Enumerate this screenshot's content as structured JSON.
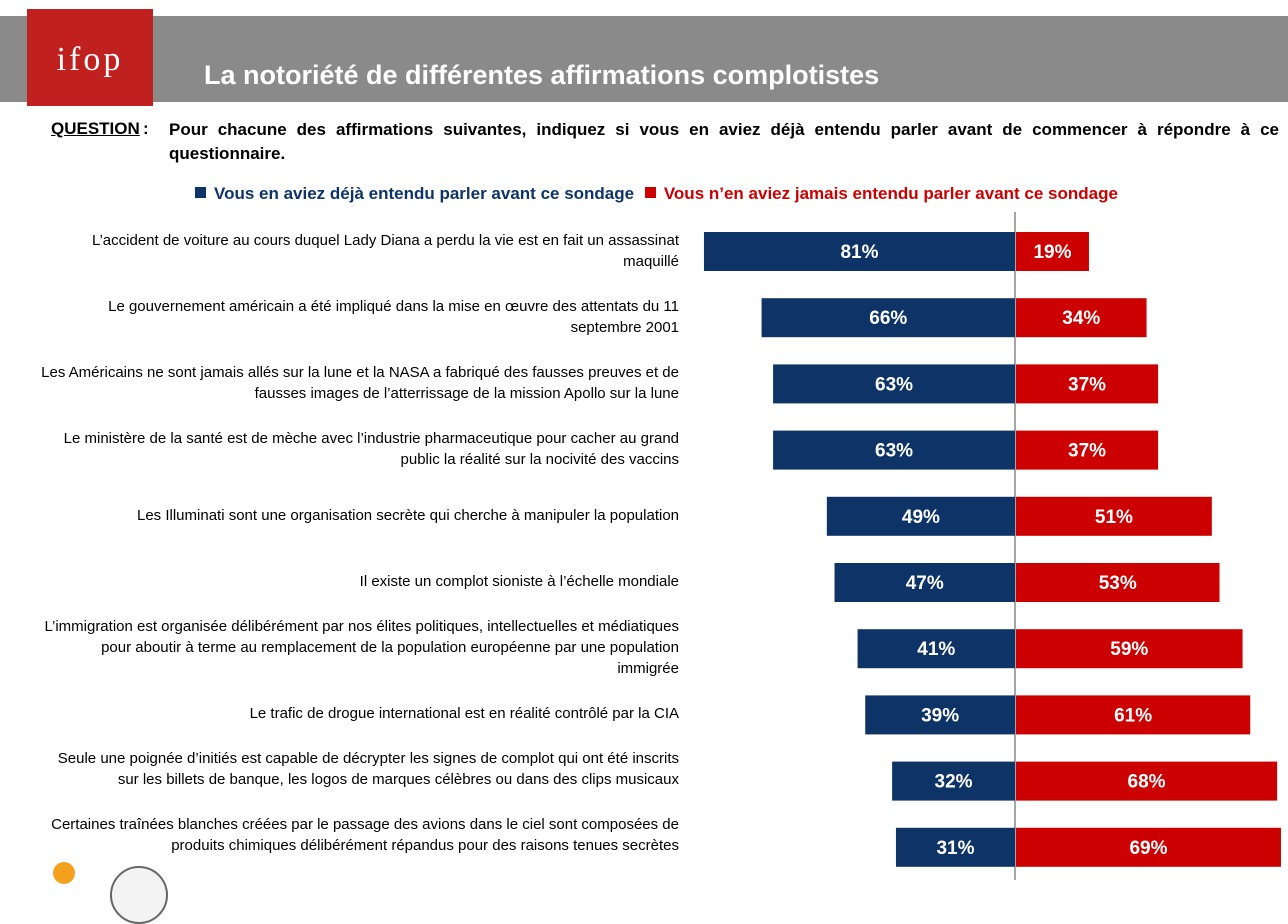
{
  "header": {
    "logo_text": "ifop",
    "title": "La notoriété de différentes affirmations complotistes"
  },
  "question": {
    "label": "QUESTION",
    "colon": ":",
    "text": "Pour chacune des affirmations suivantes, indiquez si vous en aviez déjà entendu parler avant de commencer à répondre à ce questionnaire."
  },
  "colors": {
    "heard": "#0e3467",
    "never": "#cc0000",
    "header_bg": "#8a8a8a",
    "logo_bg": "#c0211f"
  },
  "chart_data": {
    "type": "bar",
    "orientation": "horizontal-diverging",
    "xlim": [
      0,
      100
    ],
    "legend_position": "top",
    "series": [
      {
        "name": "Vous en aviez déjà entendu parler avant ce sondage",
        "values": [
          81,
          66,
          63,
          63,
          49,
          47,
          41,
          39,
          32,
          31
        ]
      },
      {
        "name": "Vous n’en aviez jamais entendu parler avant ce sondage",
        "values": [
          19,
          34,
          37,
          37,
          51,
          53,
          59,
          61,
          68,
          69
        ]
      }
    ],
    "value_labels": {
      "heard": [
        "81%",
        "66%",
        "63%",
        "63%",
        "49%",
        "47%",
        "41%",
        "39%",
        "32%",
        "31%"
      ],
      "never": [
        "19%",
        "34%",
        "37%",
        "37%",
        "51%",
        "53%",
        "59%",
        "61%",
        "68%",
        "69%"
      ]
    },
    "categories": [
      "L’accident de voiture au cours duquel Lady Diana a perdu la vie est en fait un assassinat maquillé",
      "Le gouvernement américain a été impliqué dans la mise en œuvre des attentats du 11 septembre 2001",
      "Les Américains ne sont jamais allés sur la lune et la NASA a fabriqué des fausses preuves et de fausses images de l’atterrissage de la mission Apollo sur la lune",
      "Le ministère de la santé est de mèche avec l’industrie pharmaceutique pour cacher au grand public la réalité sur la nocivité des vaccins",
      "Les Illuminati sont une organisation secrète qui cherche à manipuler la population",
      "Il existe un complot sioniste à l’échelle mondiale",
      "L’immigration est organisée délibérément par nos élites politiques, intellectuelles et médiatiques pour aboutir à terme au remplacement de la population européenne par une population immigrée",
      "Le trafic de drogue international est en réalité contrôlé par la CIA",
      "Seule une poignée d’initiés est capable de décrypter les signes de complot qui ont été inscrits sur les billets de banque, les logos de marques célèbres ou dans des clips musicaux",
      "Certaines traînées blanches créées par le passage des avions dans le ciel sont composées de produits chimiques délibérément répandus pour des raisons tenues secrètes"
    ]
  }
}
